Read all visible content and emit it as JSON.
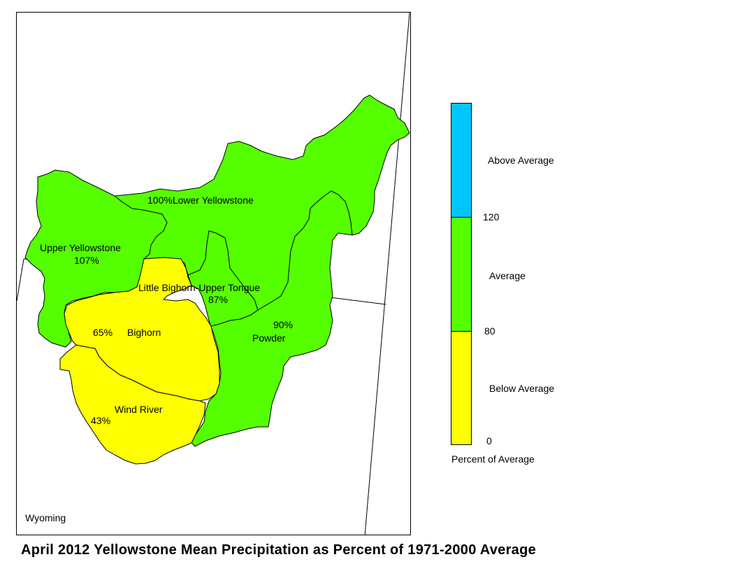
{
  "title": "April 2012 Yellowstone Mean Precipitation as Percent of 1971-2000 Average",
  "map": {
    "state_label": "Wyoming",
    "basins": [
      {
        "name": "Lower Yellowstone",
        "percent": "100%",
        "category": "Average",
        "color": "#55ff00"
      },
      {
        "name": "Upper Yellowstone",
        "percent": "107%",
        "category": "Average",
        "color": "#55ff00"
      },
      {
        "name": "Little Bighorn-Upper Tongue",
        "percent": "87%",
        "category": "Average",
        "color": "#55ff00"
      },
      {
        "name": "Powder",
        "percent": "90%",
        "category": "Average",
        "color": "#55ff00"
      },
      {
        "name": "Bighorn",
        "percent": "65%",
        "category": "Below Average",
        "color": "#ffff00"
      },
      {
        "name": "Wind River",
        "percent": "43%",
        "category": "Below Average",
        "color": "#ffff00"
      }
    ]
  },
  "legend": {
    "caption": "Percent of Average",
    "classes": [
      {
        "label": "Above Average",
        "color": "#00c5ff"
      },
      {
        "label": "Average",
        "color": "#55ff00"
      },
      {
        "label": "Below Average",
        "color": "#ffff00"
      }
    ],
    "breaks": [
      "120",
      "80",
      "0"
    ]
  }
}
